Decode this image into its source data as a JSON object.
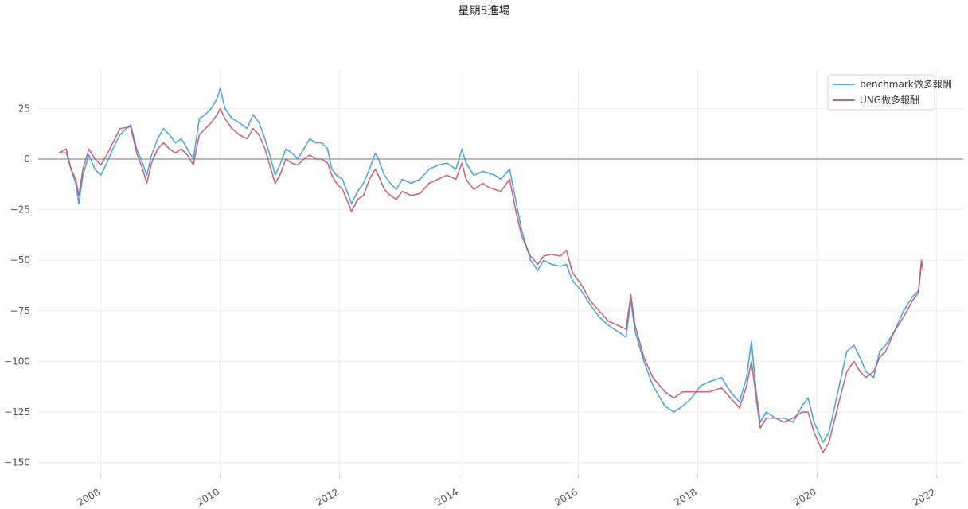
{
  "chart_data": {
    "type": "line",
    "title": "星期5進場",
    "xlabel": "",
    "ylabel": "",
    "xlim": [
      2006.95,
      2022.45
    ],
    "ylim": [
      -156,
      44
    ],
    "x_ticks": [
      2008,
      2010,
      2012,
      2014,
      2016,
      2018,
      2020,
      2022
    ],
    "x_tick_labels": [
      "2008",
      "2010",
      "2012",
      "2014",
      "2016",
      "2018",
      "2020",
      "2022"
    ],
    "y_ticks": [
      25,
      0,
      -25,
      -50,
      -75,
      -100,
      -125,
      -150
    ],
    "y_tick_labels": [
      "25",
      "0",
      "−25",
      "−50",
      "−75",
      "−100",
      "−125",
      "−150"
    ],
    "grid": true,
    "zero_line": true,
    "legend_position": "top-right",
    "series": [
      {
        "name": "benchmark做多報酬",
        "color": "#3d9be0",
        "points": [
          [
            2007.3,
            3
          ],
          [
            2007.42,
            3
          ],
          [
            2007.5,
            -5
          ],
          [
            2007.58,
            -12
          ],
          [
            2007.63,
            -22
          ],
          [
            2007.7,
            -8
          ],
          [
            2007.8,
            2
          ],
          [
            2007.9,
            -5
          ],
          [
            2008.0,
            -8
          ],
          [
            2008.1,
            -2
          ],
          [
            2008.2,
            5
          ],
          [
            2008.32,
            12
          ],
          [
            2008.5,
            17
          ],
          [
            2008.6,
            5
          ],
          [
            2008.7,
            -2
          ],
          [
            2008.77,
            -8
          ],
          [
            2008.85,
            2
          ],
          [
            2008.95,
            10
          ],
          [
            2009.05,
            15
          ],
          [
            2009.15,
            12
          ],
          [
            2009.25,
            8
          ],
          [
            2009.35,
            10
          ],
          [
            2009.45,
            5
          ],
          [
            2009.55,
            0
          ],
          [
            2009.65,
            20
          ],
          [
            2009.75,
            22
          ],
          [
            2009.85,
            25
          ],
          [
            2009.95,
            30
          ],
          [
            2010.0,
            35
          ],
          [
            2010.08,
            25
          ],
          [
            2010.2,
            20
          ],
          [
            2010.32,
            18
          ],
          [
            2010.45,
            15
          ],
          [
            2010.55,
            22
          ],
          [
            2010.65,
            18
          ],
          [
            2010.75,
            10
          ],
          [
            2010.85,
            0
          ],
          [
            2010.92,
            -8
          ],
          [
            2011.0,
            -3
          ],
          [
            2011.1,
            5
          ],
          [
            2011.2,
            3
          ],
          [
            2011.3,
            0
          ],
          [
            2011.4,
            5
          ],
          [
            2011.5,
            10
          ],
          [
            2011.6,
            8
          ],
          [
            2011.7,
            8
          ],
          [
            2011.8,
            5
          ],
          [
            2011.87,
            -5
          ],
          [
            2011.95,
            -8
          ],
          [
            2012.05,
            -10
          ],
          [
            2012.15,
            -18
          ],
          [
            2012.2,
            -22
          ],
          [
            2012.3,
            -16
          ],
          [
            2012.4,
            -12
          ],
          [
            2012.5,
            -5
          ],
          [
            2012.6,
            3
          ],
          [
            2012.65,
            0
          ],
          [
            2012.75,
            -8
          ],
          [
            2012.85,
            -12
          ],
          [
            2012.95,
            -15
          ],
          [
            2013.05,
            -10
          ],
          [
            2013.2,
            -12
          ],
          [
            2013.35,
            -10
          ],
          [
            2013.5,
            -5
          ],
          [
            2013.65,
            -3
          ],
          [
            2013.8,
            -2
          ],
          [
            2013.95,
            -5
          ],
          [
            2014.05,
            5
          ],
          [
            2014.12,
            -2
          ],
          [
            2014.25,
            -8
          ],
          [
            2014.4,
            -6
          ],
          [
            2014.5,
            -7
          ],
          [
            2014.6,
            -8
          ],
          [
            2014.7,
            -10
          ],
          [
            2014.85,
            -5
          ],
          [
            2014.95,
            -20
          ],
          [
            2015.05,
            -35
          ],
          [
            2015.2,
            -50
          ],
          [
            2015.32,
            -55
          ],
          [
            2015.42,
            -50
          ],
          [
            2015.55,
            -52
          ],
          [
            2015.7,
            -53
          ],
          [
            2015.8,
            -52
          ],
          [
            2015.9,
            -60
          ],
          [
            2016.05,
            -65
          ],
          [
            2016.2,
            -72
          ],
          [
            2016.35,
            -78
          ],
          [
            2016.5,
            -82
          ],
          [
            2016.65,
            -85
          ],
          [
            2016.8,
            -88
          ],
          [
            2016.88,
            -70
          ],
          [
            2016.95,
            -85
          ],
          [
            2017.1,
            -100
          ],
          [
            2017.25,
            -112
          ],
          [
            2017.45,
            -122
          ],
          [
            2017.6,
            -125
          ],
          [
            2017.75,
            -122
          ],
          [
            2017.9,
            -118
          ],
          [
            2018.05,
            -112
          ],
          [
            2018.2,
            -110
          ],
          [
            2018.4,
            -108
          ],
          [
            2018.55,
            -115
          ],
          [
            2018.7,
            -120
          ],
          [
            2018.82,
            -108
          ],
          [
            2018.9,
            -90
          ],
          [
            2018.98,
            -115
          ],
          [
            2019.05,
            -130
          ],
          [
            2019.15,
            -125
          ],
          [
            2019.3,
            -128
          ],
          [
            2019.45,
            -128
          ],
          [
            2019.6,
            -130
          ],
          [
            2019.75,
            -122
          ],
          [
            2019.85,
            -118
          ],
          [
            2019.95,
            -130
          ],
          [
            2020.1,
            -140
          ],
          [
            2020.2,
            -135
          ],
          [
            2020.35,
            -115
          ],
          [
            2020.5,
            -95
          ],
          [
            2020.62,
            -92
          ],
          [
            2020.72,
            -98
          ],
          [
            2020.82,
            -105
          ],
          [
            2020.95,
            -108
          ],
          [
            2021.05,
            -95
          ],
          [
            2021.15,
            -92
          ],
          [
            2021.3,
            -85
          ],
          [
            2021.45,
            -75
          ],
          [
            2021.6,
            -68
          ],
          [
            2021.7,
            -65
          ],
          [
            2021.75,
            -52
          ],
          [
            2021.78,
            -53
          ]
        ]
      },
      {
        "name": "UNG做多報酬",
        "color": "#c0566e",
        "points": [
          [
            2007.3,
            3
          ],
          [
            2007.42,
            5
          ],
          [
            2007.5,
            -5
          ],
          [
            2007.58,
            -10
          ],
          [
            2007.63,
            -18
          ],
          [
            2007.7,
            -5
          ],
          [
            2007.8,
            5
          ],
          [
            2007.9,
            0
          ],
          [
            2008.0,
            -3
          ],
          [
            2008.1,
            2
          ],
          [
            2008.2,
            8
          ],
          [
            2008.32,
            15
          ],
          [
            2008.5,
            16
          ],
          [
            2008.6,
            3
          ],
          [
            2008.7,
            -5
          ],
          [
            2008.77,
            -12
          ],
          [
            2008.85,
            -2
          ],
          [
            2008.95,
            5
          ],
          [
            2009.05,
            8
          ],
          [
            2009.15,
            5
          ],
          [
            2009.25,
            3
          ],
          [
            2009.35,
            5
          ],
          [
            2009.45,
            2
          ],
          [
            2009.55,
            -3
          ],
          [
            2009.65,
            12
          ],
          [
            2009.75,
            15
          ],
          [
            2009.85,
            18
          ],
          [
            2009.95,
            22
          ],
          [
            2010.0,
            25
          ],
          [
            2010.08,
            20
          ],
          [
            2010.2,
            15
          ],
          [
            2010.32,
            12
          ],
          [
            2010.45,
            10
          ],
          [
            2010.55,
            15
          ],
          [
            2010.65,
            12
          ],
          [
            2010.75,
            5
          ],
          [
            2010.85,
            -5
          ],
          [
            2010.92,
            -12
          ],
          [
            2011.0,
            -8
          ],
          [
            2011.1,
            0
          ],
          [
            2011.2,
            -2
          ],
          [
            2011.3,
            -3
          ],
          [
            2011.4,
            0
          ],
          [
            2011.5,
            2
          ],
          [
            2011.6,
            0
          ],
          [
            2011.7,
            0
          ],
          [
            2011.8,
            -2
          ],
          [
            2011.87,
            -8
          ],
          [
            2011.95,
            -12
          ],
          [
            2012.05,
            -15
          ],
          [
            2012.15,
            -22
          ],
          [
            2012.2,
            -26
          ],
          [
            2012.3,
            -20
          ],
          [
            2012.4,
            -18
          ],
          [
            2012.5,
            -10
          ],
          [
            2012.6,
            -5
          ],
          [
            2012.65,
            -8
          ],
          [
            2012.75,
            -15
          ],
          [
            2012.85,
            -18
          ],
          [
            2012.95,
            -20
          ],
          [
            2013.05,
            -16
          ],
          [
            2013.2,
            -18
          ],
          [
            2013.35,
            -17
          ],
          [
            2013.5,
            -12
          ],
          [
            2013.65,
            -10
          ],
          [
            2013.8,
            -8
          ],
          [
            2013.95,
            -10
          ],
          [
            2014.05,
            -2
          ],
          [
            2014.12,
            -10
          ],
          [
            2014.25,
            -15
          ],
          [
            2014.4,
            -12
          ],
          [
            2014.5,
            -14
          ],
          [
            2014.6,
            -15
          ],
          [
            2014.7,
            -16
          ],
          [
            2014.85,
            -10
          ],
          [
            2014.95,
            -25
          ],
          [
            2015.05,
            -38
          ],
          [
            2015.2,
            -48
          ],
          [
            2015.32,
            -52
          ],
          [
            2015.42,
            -48
          ],
          [
            2015.55,
            -47
          ],
          [
            2015.7,
            -48
          ],
          [
            2015.8,
            -45
          ],
          [
            2015.9,
            -56
          ],
          [
            2016.05,
            -62
          ],
          [
            2016.2,
            -70
          ],
          [
            2016.35,
            -75
          ],
          [
            2016.5,
            -80
          ],
          [
            2016.65,
            -82
          ],
          [
            2016.8,
            -84
          ],
          [
            2016.88,
            -67
          ],
          [
            2016.95,
            -82
          ],
          [
            2017.1,
            -98
          ],
          [
            2017.25,
            -108
          ],
          [
            2017.45,
            -115
          ],
          [
            2017.6,
            -118
          ],
          [
            2017.75,
            -115
          ],
          [
            2017.9,
            -115
          ],
          [
            2018.05,
            -115
          ],
          [
            2018.2,
            -115
          ],
          [
            2018.4,
            -113
          ],
          [
            2018.55,
            -118
          ],
          [
            2018.7,
            -123
          ],
          [
            2018.82,
            -112
          ],
          [
            2018.9,
            -100
          ],
          [
            2018.98,
            -118
          ],
          [
            2019.05,
            -133
          ],
          [
            2019.15,
            -128
          ],
          [
            2019.3,
            -128
          ],
          [
            2019.45,
            -130
          ],
          [
            2019.6,
            -128
          ],
          [
            2019.75,
            -125
          ],
          [
            2019.85,
            -125
          ],
          [
            2019.95,
            -135
          ],
          [
            2020.1,
            -145
          ],
          [
            2020.2,
            -140
          ],
          [
            2020.35,
            -122
          ],
          [
            2020.5,
            -105
          ],
          [
            2020.62,
            -100
          ],
          [
            2020.72,
            -105
          ],
          [
            2020.82,
            -108
          ],
          [
            2020.95,
            -105
          ],
          [
            2021.05,
            -98
          ],
          [
            2021.15,
            -95
          ],
          [
            2021.3,
            -85
          ],
          [
            2021.45,
            -78
          ],
          [
            2021.6,
            -70
          ],
          [
            2021.7,
            -66
          ],
          [
            2021.75,
            -50
          ],
          [
            2021.78,
            -55
          ]
        ]
      }
    ]
  }
}
